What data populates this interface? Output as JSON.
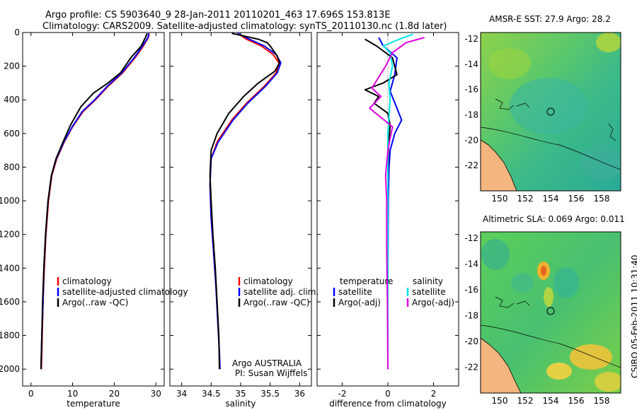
{
  "title": {
    "line1": "Argo profile: CS 5903640_9 28-Jan-2011 20110201_463 17.696S 153.813E",
    "line2": "Climatology: CARS2009. Satellite-adjusted climatology: synTS_20110130.nc (1.8d later)"
  },
  "side_text": "CSIRO 05-Feb-2011 10:31:40",
  "colors": {
    "climatology": "#ff0000",
    "satellite": "#0000ff",
    "argo": "#000000",
    "sal_sat": "#00e5e5",
    "sal_argo": "#e000e0"
  },
  "chart_data": [
    {
      "type": "line",
      "name": "temperature-profile",
      "xlabel": "temperature",
      "ylabel": "",
      "xlim": [
        -2,
        32
      ],
      "ylim": [
        2100,
        0
      ],
      "xticks": [
        "0",
        "10",
        "20",
        "30"
      ],
      "yticks": [
        "0",
        "200",
        "400",
        "600",
        "800",
        "1000",
        "1200",
        "1400",
        "1600",
        "1800",
        "2000"
      ],
      "legend": [
        "climatology",
        "satellite-adjusted climatology",
        "Argo(..raw -QC)"
      ],
      "series": [
        {
          "name": "climatology",
          "color": "#ff0000",
          "points": [
            [
              28.4,
              5
            ],
            [
              28.2,
              30
            ],
            [
              27.0,
              80
            ],
            [
              25.0,
              150
            ],
            [
              22.0,
              240
            ],
            [
              18.5,
              320
            ],
            [
              15.5,
              400
            ],
            [
              12.5,
              470
            ],
            [
              10.0,
              560
            ],
            [
              8.0,
              650
            ],
            [
              6.2,
              750
            ],
            [
              5.0,
              850
            ],
            [
              4.2,
              1000
            ],
            [
              3.6,
              1200
            ],
            [
              3.2,
              1400
            ],
            [
              2.9,
              1600
            ],
            [
              2.7,
              1800
            ],
            [
              2.5,
              2000
            ]
          ]
        },
        {
          "name": "satellite-adjusted climatology",
          "color": "#0000ff",
          "points": [
            [
              28.3,
              5
            ],
            [
              28.1,
              30
            ],
            [
              26.8,
              80
            ],
            [
              24.8,
              150
            ],
            [
              21.8,
              240
            ],
            [
              18.3,
              320
            ],
            [
              15.3,
              400
            ],
            [
              12.3,
              470
            ],
            [
              9.9,
              560
            ],
            [
              7.9,
              650
            ],
            [
              6.1,
              750
            ],
            [
              4.9,
              850
            ],
            [
              4.1,
              1000
            ],
            [
              3.5,
              1200
            ],
            [
              3.1,
              1400
            ],
            [
              2.9,
              1600
            ],
            [
              2.6,
              1800
            ],
            [
              2.4,
              2000
            ]
          ]
        },
        {
          "name": "Argo(..raw -QC)",
          "color": "#000000",
          "points": [
            [
              27.9,
              5
            ],
            [
              27.5,
              30
            ],
            [
              26.5,
              80
            ],
            [
              24.0,
              150
            ],
            [
              21.5,
              240
            ],
            [
              18.5,
              300
            ],
            [
              15.0,
              360
            ],
            [
              12.0,
              440
            ],
            [
              9.5,
              550
            ],
            [
              7.7,
              650
            ],
            [
              6.0,
              750
            ],
            [
              4.9,
              850
            ],
            [
              4.1,
              1000
            ],
            [
              3.5,
              1200
            ],
            [
              3.1,
              1400
            ],
            [
              2.8,
              1600
            ],
            [
              2.6,
              1800
            ],
            [
              2.4,
              2000
            ]
          ]
        }
      ]
    },
    {
      "type": "line",
      "name": "salinity-profile",
      "xlabel": "salinity",
      "xlim": [
        33.8,
        36.2
      ],
      "ylim": [
        2100,
        0
      ],
      "xticks": [
        "34",
        "34.5",
        "35",
        "35.5",
        "36"
      ],
      "legend": [
        "climatology",
        "satellite adj. clim.",
        "Argo(..raw -QC)"
      ],
      "annotation": [
        "Argo AUSTRALIA",
        "PI: Susan Wijffels"
      ],
      "series": [
        {
          "name": "climatology",
          "color": "#ff0000",
          "points": [
            [
              34.95,
              5
            ],
            [
              35.1,
              40
            ],
            [
              35.35,
              80
            ],
            [
              35.55,
              130
            ],
            [
              35.65,
              180
            ],
            [
              35.6,
              240
            ],
            [
              35.4,
              320
            ],
            [
              35.1,
              420
            ],
            [
              34.85,
              520
            ],
            [
              34.6,
              650
            ],
            [
              34.5,
              750
            ],
            [
              34.48,
              900
            ],
            [
              34.5,
              1100
            ],
            [
              34.54,
              1300
            ],
            [
              34.58,
              1500
            ],
            [
              34.61,
              1700
            ],
            [
              34.64,
              1900
            ],
            [
              34.65,
              2000
            ]
          ]
        },
        {
          "name": "satellite adj. clim.",
          "color": "#0000ff",
          "points": [
            [
              34.95,
              5
            ],
            [
              35.15,
              40
            ],
            [
              35.4,
              80
            ],
            [
              35.6,
              130
            ],
            [
              35.68,
              180
            ],
            [
              35.62,
              240
            ],
            [
              35.42,
              320
            ],
            [
              35.12,
              420
            ],
            [
              34.87,
              520
            ],
            [
              34.62,
              650
            ],
            [
              34.5,
              750
            ],
            [
              34.48,
              900
            ],
            [
              34.5,
              1100
            ],
            [
              34.54,
              1300
            ],
            [
              34.58,
              1500
            ],
            [
              34.61,
              1700
            ],
            [
              34.64,
              1900
            ],
            [
              34.65,
              2000
            ]
          ]
        },
        {
          "name": "Argo(..raw -QC)",
          "color": "#000000",
          "points": [
            [
              34.85,
              5
            ],
            [
              35.05,
              20
            ],
            [
              35.3,
              40
            ],
            [
              35.45,
              60
            ],
            [
              35.5,
              80
            ],
            [
              35.62,
              140
            ],
            [
              35.66,
              180
            ],
            [
              35.58,
              230
            ],
            [
              35.3,
              300
            ],
            [
              35.05,
              380
            ],
            [
              34.8,
              480
            ],
            [
              34.6,
              600
            ],
            [
              34.5,
              700
            ],
            [
              34.48,
              850
            ],
            [
              34.5,
              1000
            ],
            [
              34.53,
              1200
            ],
            [
              34.57,
              1400
            ],
            [
              34.6,
              1600
            ],
            [
              34.63,
              1800
            ],
            [
              34.64,
              2000
            ]
          ]
        }
      ]
    },
    {
      "type": "line",
      "name": "difference-profile",
      "xlabel": "difference from climatology",
      "xlim": [
        -3.1,
        3.1
      ],
      "ylim": [
        2100,
        0
      ],
      "xticks": [
        "-2",
        "0",
        "2"
      ],
      "legend_groups": {
        "temperature": [
          "satellite",
          "Argo(-adj)"
        ],
        "salinity": [
          "satellite",
          "Argo(-adj)"
        ]
      },
      "series": [
        {
          "name": "temperature satellite",
          "color": "#0000ff",
          "points": [
            [
              -0.4,
              30
            ],
            [
              -0.2,
              80
            ],
            [
              0.4,
              150
            ],
            [
              0.3,
              250
            ],
            [
              0.1,
              350
            ],
            [
              0.4,
              450
            ],
            [
              0.6,
              520
            ],
            [
              0.3,
              600
            ],
            [
              0.1,
              700
            ],
            [
              0.05,
              800
            ],
            [
              0.02,
              1000
            ],
            [
              0,
              1500
            ],
            [
              0,
              2000
            ]
          ]
        },
        {
          "name": "temperature Argo(-adj)",
          "color": "#000000",
          "points": [
            [
              -1.0,
              40
            ],
            [
              -0.5,
              80
            ],
            [
              0.2,
              150
            ],
            [
              0.4,
              250
            ],
            [
              -0.2,
              300
            ],
            [
              -1.0,
              340
            ],
            [
              -0.4,
              380
            ],
            [
              -0.6,
              420
            ],
            [
              0,
              480
            ],
            [
              0.1,
              550
            ],
            [
              0.02,
              700
            ],
            [
              0,
              900
            ],
            [
              0,
              1500
            ],
            [
              0,
              2000
            ]
          ]
        },
        {
          "name": "salinity satellite",
          "color": "#00e5e5",
          "points": [
            [
              1.1,
              10
            ],
            [
              0.5,
              40
            ],
            [
              -0.2,
              80
            ],
            [
              0.1,
              120
            ],
            [
              0.2,
              200
            ],
            [
              0.05,
              300
            ],
            [
              0.1,
              400
            ],
            [
              0,
              600
            ],
            [
              0,
              800
            ],
            [
              0,
              1000
            ],
            [
              0,
              2000
            ]
          ]
        },
        {
          "name": "salinity Argo(-adj)",
          "color": "#e000e0",
          "points": [
            [
              1.6,
              30
            ],
            [
              0.8,
              60
            ],
            [
              0.2,
              120
            ],
            [
              -0.1,
              200
            ],
            [
              -0.7,
              330
            ],
            [
              -0.3,
              380
            ],
            [
              -0.8,
              450
            ],
            [
              0.2,
              560
            ],
            [
              0,
              700
            ],
            [
              -0.1,
              850
            ],
            [
              -0.05,
              1000
            ],
            [
              -0.05,
              1300
            ],
            [
              -0.02,
              1600
            ],
            [
              0,
              2000
            ]
          ]
        }
      ]
    },
    {
      "type": "heatmap",
      "name": "amsr-sst-map",
      "title": "AMSR-E SST: 27.9 Argo: 28.2",
      "xlim": [
        148.5,
        159.5
      ],
      "ylim": [
        -24,
        -11.5
      ],
      "xticks": [
        "150",
        "152",
        "154",
        "156",
        "158"
      ],
      "yticks": [
        "-12",
        "-14",
        "-16",
        "-18",
        "-20",
        "-22"
      ],
      "argo_position": [
        153.8,
        -17.7
      ]
    },
    {
      "type": "heatmap",
      "name": "altimetric-sla-map",
      "title": "Altimetric SLA: 0.069 Argo: 0.011",
      "xlim": [
        148.5,
        159.5
      ],
      "ylim": [
        -24,
        -11.5
      ],
      "xticks": [
        "150",
        "152",
        "154",
        "156",
        "158"
      ],
      "yticks": [
        "-12",
        "-14",
        "-16",
        "-18",
        "-20",
        "-22"
      ],
      "argo_position": [
        153.8,
        -17.7
      ]
    }
  ]
}
